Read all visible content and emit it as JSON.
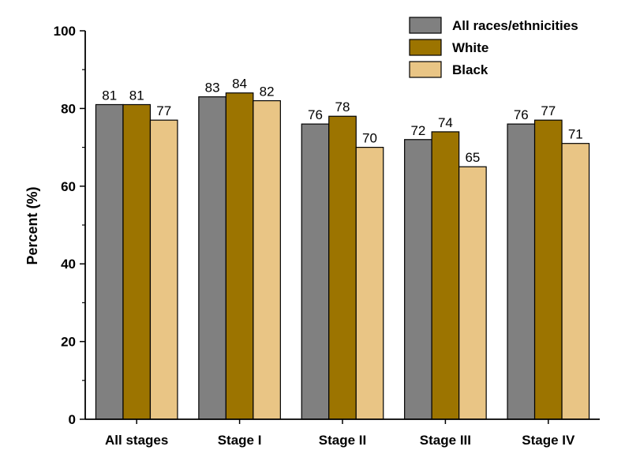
{
  "chart_data": {
    "type": "bar",
    "title": "",
    "xlabel": "",
    "ylabel": "Percent (%)",
    "ylim": [
      0,
      100
    ],
    "yticks": [
      0,
      20,
      40,
      60,
      80,
      100
    ],
    "categories": [
      "All stages",
      "Stage I",
      "Stage II",
      "Stage III",
      "Stage IV"
    ],
    "series": [
      {
        "name": "All races/ethnicities",
        "color": "#808080",
        "values": [
          81,
          83,
          76,
          72,
          76
        ]
      },
      {
        "name": "White",
        "color": "#9C7400",
        "values": [
          81,
          84,
          78,
          74,
          77
        ]
      },
      {
        "name": "Black",
        "color": "#E9C585",
        "values": [
          77,
          82,
          70,
          65,
          71
        ]
      }
    ],
    "legend_position": "top-right",
    "grid": false
  }
}
